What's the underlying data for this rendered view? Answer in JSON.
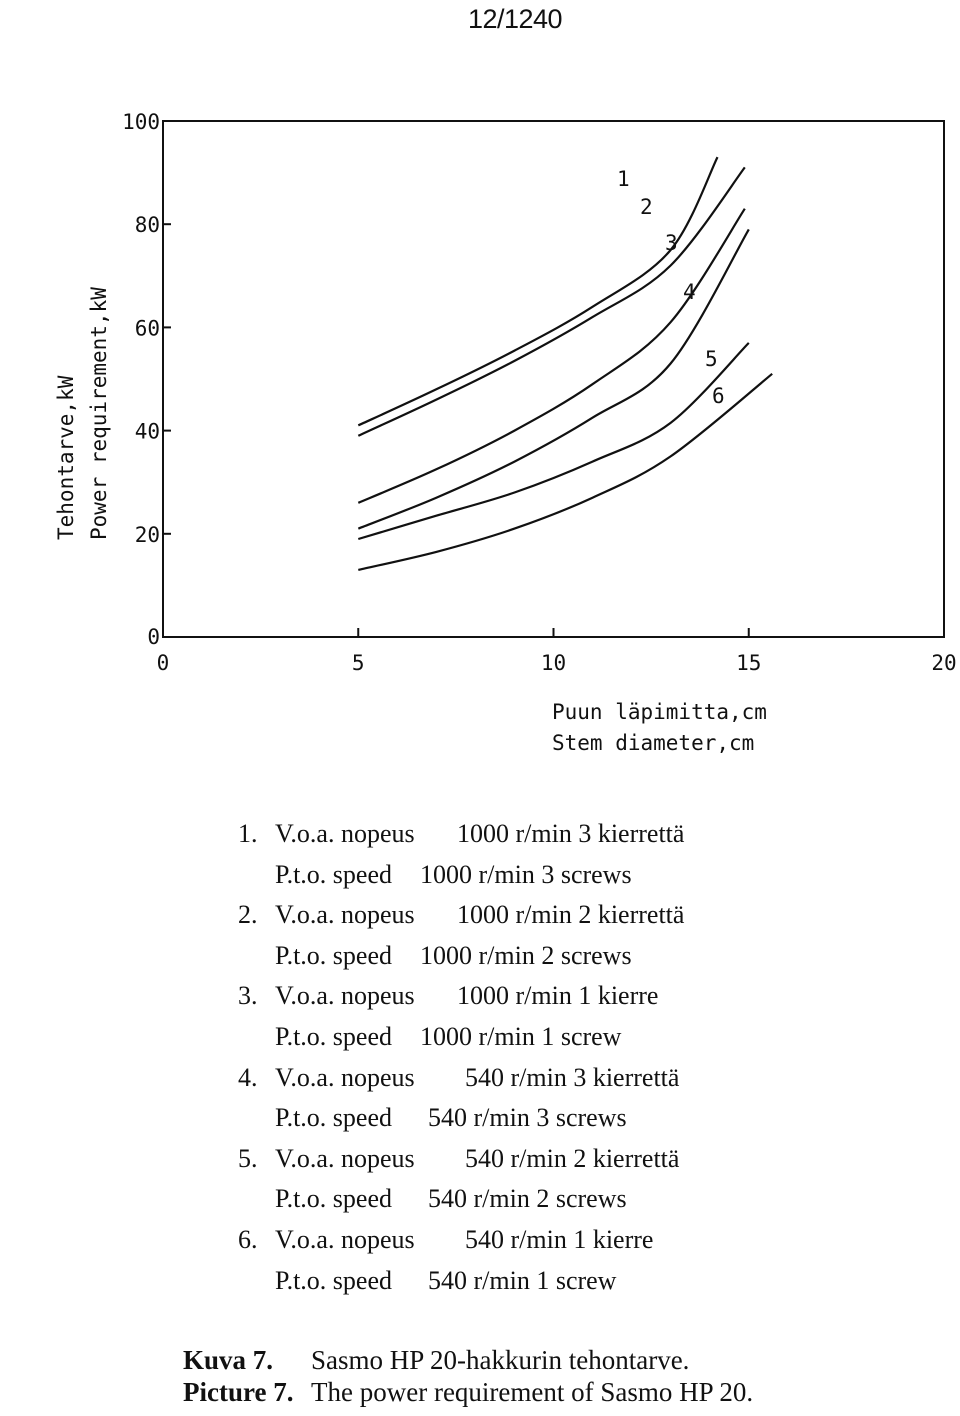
{
  "page_number": "12/1240",
  "chart_data": {
    "type": "line",
    "title": "",
    "ylabel": [
      "Tehontarve,kW",
      "Power requirement,kW"
    ],
    "xlabel": [
      "Puun läpimitta,cm",
      "Stem diameter,cm"
    ],
    "xlim": [
      0,
      20
    ],
    "ylim": [
      0,
      100
    ],
    "xticks": [
      "0",
      "5",
      "10",
      "15",
      "20"
    ],
    "yticks": [
      "0",
      "20",
      "40",
      "60",
      "80",
      "100"
    ],
    "grid": false,
    "series": [
      {
        "name": "1",
        "x": [
          5,
          7,
          9,
          11,
          13,
          14.2
        ],
        "y": [
          41,
          48,
          55.5,
          64,
          75,
          93
        ]
      },
      {
        "name": "2",
        "x": [
          5,
          7,
          9,
          11,
          13,
          14.9
        ],
        "y": [
          39,
          46,
          53.5,
          62,
          72,
          91
        ]
      },
      {
        "name": "3",
        "x": [
          5,
          7,
          9,
          11,
          13,
          14.9
        ],
        "y": [
          26,
          32.5,
          40,
          49,
          61,
          83
        ]
      },
      {
        "name": "4",
        "x": [
          5,
          7,
          9,
          11,
          13,
          15
        ],
        "y": [
          21,
          27,
          34,
          42.5,
          53,
          79
        ]
      },
      {
        "name": "5",
        "x": [
          5,
          7,
          9,
          11,
          13,
          15
        ],
        "y": [
          19,
          23.5,
          28,
          34,
          41.5,
          57
        ]
      },
      {
        "name": "6",
        "x": [
          5,
          7,
          9,
          11,
          13,
          15.6
        ],
        "y": [
          13,
          16.5,
          21,
          27,
          35,
          51
        ]
      }
    ]
  },
  "legend": [
    {
      "num": "1.",
      "fi_a": "V.o.a. nopeus",
      "fi_b": "1000 r/min 3 kierrettä",
      "en_a": "P.t.o. speed",
      "en_b": "1000 r/min 3 screws"
    },
    {
      "num": "2.",
      "fi_a": "V.o.a. nopeus",
      "fi_b": "1000 r/min 2 kierrettä",
      "en_a": "P.t.o. speed",
      "en_b": "1000 r/min 2 screws"
    },
    {
      "num": "3.",
      "fi_a": "V.o.a. nopeus",
      "fi_b": "1000 r/min 1 kierre",
      "en_a": "P.t.o. speed",
      "en_b": "1000 r/min 1 screw"
    },
    {
      "num": "4.",
      "fi_a": "V.o.a. nopeus",
      "fi_b": "540 r/min 3 kierrettä",
      "en_a": "P.t.o. speed",
      "en_b": "540 r/min 3 screws"
    },
    {
      "num": "5.",
      "fi_a": "V.o.a. nopeus",
      "fi_b": "540 r/min 2 kierrettä",
      "en_a": "P.t.o. speed",
      "en_b": "540 r/min 2 screws"
    },
    {
      "num": "6.",
      "fi_a": "V.o.a. nopeus",
      "fi_b": "540 r/min 1 kierre",
      "en_a": "P.t.o. speed",
      "en_b": "540 r/min 1 screw"
    }
  ],
  "caption": [
    {
      "label": "Kuva 7.",
      "text": "Sasmo HP 20-hakkurin tehontarve."
    },
    {
      "label": "Picture 7.",
      "text": "The power requirement of Sasmo HP 20."
    }
  ]
}
